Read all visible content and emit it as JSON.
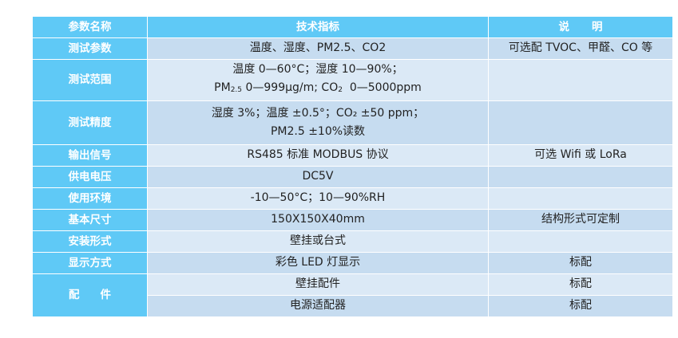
{
  "header": {
    "col1": "参数名称",
    "col2": "技术指标",
    "col3": "说明"
  },
  "rows": {
    "r1": {
      "label": "测试参数",
      "spec": "温度、湿度、PM2.5、CO2",
      "note": "可选配 TVOC、甲醛、CO 等"
    },
    "r2": {
      "label": "测试范围",
      "spec_line1": "温度 0—60°C；湿度 10—90%；",
      "pm_prefix": "PM",
      "pm_sub": "2.5",
      "pm_range": " 0—999μg/m; CO",
      "co2_sub": "2",
      "co2_range": "  0—5000ppm",
      "note": ""
    },
    "r3": {
      "label": "测试精度",
      "spec_line1": "湿度  3%；温度 ±0.5°；CO₂ ±50 ppm；",
      "spec_line2": "PM2.5 ±10%读数",
      "note": ""
    },
    "r4": {
      "label": "输出信号",
      "spec": "RS485 标准 MODBUS 协议",
      "note": "可选 Wifi 或 LoRa"
    },
    "r5": {
      "label": "供电电压",
      "spec": "DC5V",
      "note": ""
    },
    "r6": {
      "label": "使用环境",
      "spec": "-10—50°C；10—90%RH",
      "note": ""
    },
    "r7": {
      "label": "基本尺寸",
      "spec": "150X150X40mm",
      "note": "结构形式可定制"
    },
    "r8": {
      "label": "安装形式",
      "spec": "壁挂或台式",
      "note": ""
    },
    "r9": {
      "label": "显示方式",
      "spec": "彩色 LED 灯显示",
      "note": "标配"
    },
    "r10": {
      "label": "配件",
      "items": [
        {
          "spec": "壁挂配件",
          "note": "标配"
        },
        {
          "spec": "电源适配器",
          "note": "标配"
        }
      ]
    }
  }
}
